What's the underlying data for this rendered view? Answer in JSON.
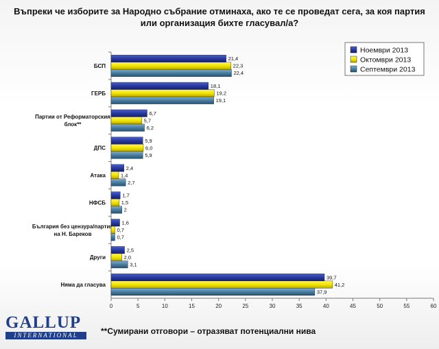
{
  "chart_data": {
    "type": "bar",
    "orientation": "horizontal",
    "title": "Въпреки че изборите за Народно събрание отминаха, ако те се проведат сега, за коя партия или организация бихте гласувал/а?",
    "categories": [
      "БСП",
      "ГЕРБ",
      "Партии от Реформаторския блок**",
      "ДПС",
      "Атака",
      "НФСБ",
      "България без цензура/партия на Н. Бареков",
      "Други",
      "Няма да гласува"
    ],
    "series": [
      {
        "name": "Ноември 2013",
        "color": "#2a3a9c",
        "values": [
          21.4,
          18.1,
          6.7,
          5.9,
          2.4,
          1.7,
          1.6,
          2.5,
          39.7
        ],
        "labels": [
          "21,4",
          "18,1",
          "6,7",
          "5,9",
          "2,4",
          "1,7",
          "1,6",
          "2,5",
          "39,7"
        ]
      },
      {
        "name": "Октомври 2013",
        "color": "#f2e600",
        "values": [
          22.3,
          19.2,
          5.7,
          6.0,
          1.4,
          1.5,
          0.7,
          2.0,
          41.2
        ],
        "labels": [
          "22,3",
          "19,2",
          "5,7",
          "6,0",
          "1,4",
          "1,5",
          "0,7",
          "2,0",
          "41,2"
        ]
      },
      {
        "name": "Септември 2013",
        "color": "#4a7da0",
        "values": [
          22.4,
          19.1,
          6.2,
          5.9,
          2.7,
          2.0,
          0.7,
          3.1,
          37.9
        ],
        "labels": [
          "22,4",
          "19,1",
          "6,2",
          "5,9",
          "2,7",
          "2",
          "0,7",
          "3,1",
          "37,9"
        ]
      }
    ],
    "xlim": [
      0,
      60
    ],
    "xticks": [
      0,
      5,
      10,
      15,
      20,
      25,
      30,
      35,
      40,
      45,
      50,
      55,
      60
    ],
    "grid": false,
    "legend": "top-right"
  },
  "footnote": "**Сумирани отговори – отразяват потенциални нива",
  "logo": {
    "main": "GALLUP",
    "sub": "INTERNATIONAL"
  }
}
